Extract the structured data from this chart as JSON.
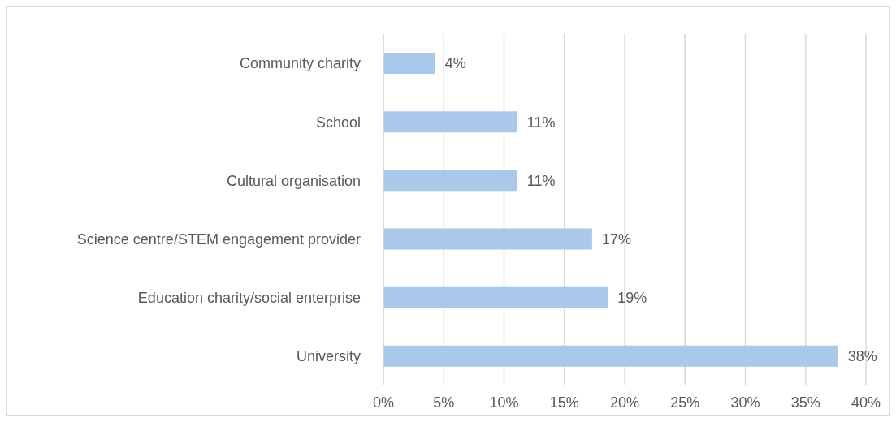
{
  "chart_data": {
    "type": "bar",
    "orientation": "horizontal",
    "categories": [
      "Community charity",
      "School",
      "Cultural organisation",
      "Science centre/STEM engagement provider",
      "Education charity/social enterprise",
      "University"
    ],
    "values": [
      4.3,
      11.1,
      11.1,
      17.3,
      18.6,
      37.7
    ],
    "value_labels": [
      "4%",
      "11%",
      "11%",
      "17%",
      "19%",
      "38%"
    ],
    "color": "#a9c8ea",
    "xlim": [
      0,
      40
    ],
    "xticks": [
      {
        "value": 0,
        "label": "0%"
      },
      {
        "value": 5,
        "label": "5%"
      },
      {
        "value": 10,
        "label": "10%"
      },
      {
        "value": 15,
        "label": "15%"
      },
      {
        "value": 20,
        "label": "20%"
      },
      {
        "value": 25,
        "label": "25%"
      },
      {
        "value": 30,
        "label": "30%"
      },
      {
        "value": 35,
        "label": "35%"
      },
      {
        "value": 40,
        "label": "40%"
      }
    ],
    "grid": "x",
    "legend": false
  }
}
